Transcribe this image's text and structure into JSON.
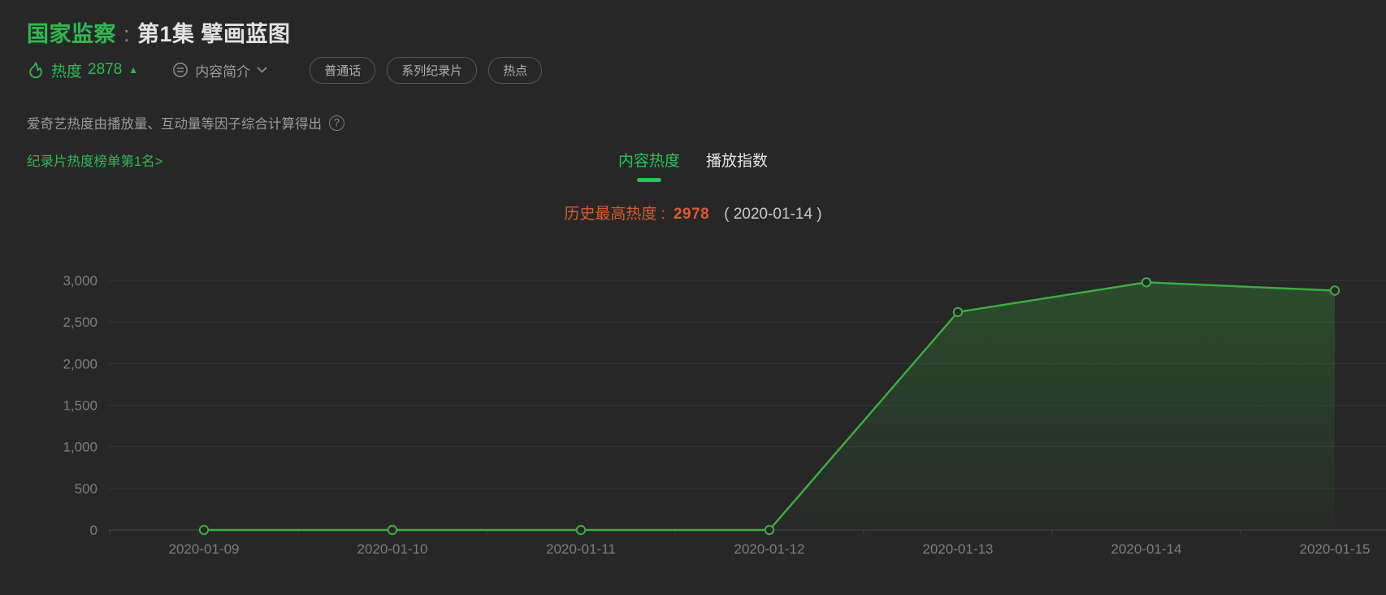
{
  "header": {
    "title_main": "国家监察",
    "title_separator": ":",
    "title_episode": "第1集 擘画蓝图",
    "heat_label": "热度",
    "heat_value": "2878",
    "heat_arrow": "▲",
    "summary_label": "内容简介",
    "tags": [
      "普通话",
      "系列纪录片",
      "热点"
    ],
    "info_text": "爱奇艺热度由播放量、互动量等因子综合计算得出",
    "help_glyph": "?",
    "rank_link": "纪录片热度榜单第1名>"
  },
  "tabs": [
    {
      "label": "内容热度",
      "active": true
    },
    {
      "label": "播放指数",
      "active": false
    }
  ],
  "peak": {
    "label": "历史最高热度 :",
    "value": "2978",
    "date": "( 2020-01-14 )"
  },
  "colors": {
    "bg": "#272727",
    "green": "#2bbb51",
    "line-green": "#38b13c",
    "bright-green": "#1fc94f",
    "orange": "#e1592a"
  },
  "chart_data": {
    "type": "line",
    "title": "内容热度趋势",
    "x": [
      "2020-01-09",
      "2020-01-10",
      "2020-01-11",
      "2020-01-12",
      "2020-01-13",
      "2020-01-14",
      "2020-01-15"
    ],
    "values": [
      0,
      0,
      0,
      0,
      2620,
      2978,
      2878
    ],
    "ylim": [
      0,
      3000
    ],
    "ytick_step": 500,
    "ytick_labels": [
      "0",
      "500",
      "1,000",
      "1,500",
      "2,000",
      "2,500",
      "3,000"
    ],
    "xlabel": "",
    "ylabel": "",
    "grid": true,
    "legend": "none",
    "line_color": "#38b13c",
    "marker": "hollow-circle",
    "area_fill": "green-fade"
  }
}
